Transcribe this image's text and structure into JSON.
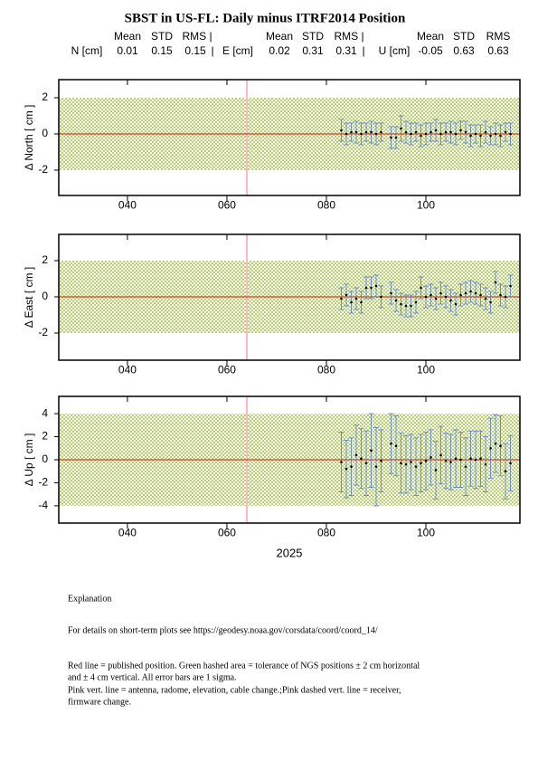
{
  "title": "SBST in US-FL: Daily minus ITRF2014 Position",
  "stats_header": [
    [
      "Mean",
      "STD",
      "RMS |"
    ],
    [
      "Mean",
      "STD",
      "RMS |"
    ],
    [
      "Mean",
      "STD",
      "RMS"
    ]
  ],
  "stats": [
    {
      "label": "N [cm]",
      "mean": 0.01,
      "std": 0.15,
      "rms": 0.15,
      "sep": "|"
    },
    {
      "label": "E [cm]",
      "mean": 0.02,
      "std": 0.31,
      "rms": 0.31,
      "sep": "|"
    },
    {
      "label": "U [cm]",
      "mean": -0.05,
      "std": 0.63,
      "rms": 0.63
    }
  ],
  "chart_data": [
    {
      "type": "errorbar",
      "ylabel": "Δ North  [ cm ]",
      "x": [
        83,
        84,
        85,
        86,
        87,
        88,
        89,
        90,
        91,
        93,
        94,
        95,
        96,
        97,
        98,
        99,
        100,
        101,
        102,
        103,
        104,
        105,
        106,
        107,
        108,
        109,
        110,
        111,
        112,
        113,
        114,
        115,
        116,
        117
      ],
      "values": [
        0.2,
        0.0,
        0.1,
        0.1,
        0.0,
        0.1,
        0.1,
        0.0,
        0.1,
        -0.2,
        -0.2,
        0.3,
        0.1,
        0.0,
        0.1,
        -0.1,
        0.0,
        0.1,
        0.2,
        0.0,
        0.1,
        0.1,
        0.0,
        0.2,
        0.1,
        -0.1,
        0.0,
        -0.1,
        0.1,
        -0.1,
        0.0,
        -0.1,
        0.1,
        0.0
      ],
      "errors": [
        0.6,
        0.6,
        0.5,
        0.6,
        0.6,
        0.5,
        0.6,
        0.6,
        0.5,
        0.6,
        0.6,
        0.7,
        0.6,
        0.6,
        0.5,
        0.6,
        0.6,
        0.5,
        0.6,
        0.6,
        0.5,
        0.6,
        0.6,
        0.5,
        0.6,
        0.6,
        0.5,
        0.6,
        0.6,
        0.5,
        0.6,
        0.6,
        0.5,
        0.6
      ],
      "xlim": [
        26.2,
        118.9
      ],
      "ylim": [
        -3.4,
        3
      ],
      "yticks": [
        -2,
        0,
        2
      ],
      "xticks": [
        {
          "value": 40,
          "label": "040"
        },
        {
          "value": 60,
          "label": "060"
        },
        {
          "value": 80,
          "label": "080"
        },
        {
          "value": 100,
          "label": "100"
        }
      ],
      "band": 2,
      "band_color": "#b5d46a",
      "reference": 0,
      "reference_color": "#e03a20",
      "event_x": 64,
      "event_color": "#ffb6c8",
      "color": "#5577cc",
      "point_color": "#000000"
    },
    {
      "type": "errorbar",
      "ylabel": "Δ East  [ cm ]",
      "x": [
        83,
        84,
        85,
        86,
        87,
        88,
        89,
        90,
        91,
        93,
        94,
        95,
        96,
        97,
        98,
        99,
        100,
        101,
        102,
        103,
        104,
        105,
        106,
        107,
        108,
        109,
        110,
        111,
        112,
        113,
        114,
        115,
        116,
        117
      ],
      "values": [
        -0.1,
        0.1,
        -0.3,
        -0.1,
        -0.3,
        0.5,
        0.5,
        0.6,
        0.0,
        0.2,
        -0.2,
        -0.4,
        -0.5,
        -0.5,
        -0.3,
        0.5,
        0.0,
        0.1,
        -0.1,
        0.2,
        0.0,
        -0.2,
        -0.4,
        0.1,
        0.2,
        0.3,
        0.2,
        0.1,
        -0.1,
        -0.3,
        0.8,
        0.1,
        0.0,
        0.6
      ],
      "errors": [
        0.6,
        0.6,
        0.6,
        0.6,
        0.6,
        0.6,
        0.6,
        0.6,
        0.6,
        0.6,
        0.6,
        0.6,
        0.6,
        0.6,
        0.6,
        0.6,
        0.6,
        0.6,
        0.6,
        0.6,
        0.6,
        0.6,
        0.6,
        0.6,
        0.6,
        0.6,
        0.6,
        0.6,
        0.6,
        0.6,
        0.6,
        0.6,
        0.6,
        0.6
      ],
      "xlim": [
        26.2,
        118.9
      ],
      "ylim": [
        -3.5,
        3.45
      ],
      "yticks": [
        -2,
        0,
        2
      ],
      "xticks": [
        {
          "value": 40,
          "label": "040"
        },
        {
          "value": 60,
          "label": "060"
        },
        {
          "value": 80,
          "label": "080"
        },
        {
          "value": 100,
          "label": "100"
        }
      ],
      "band": 2,
      "band_color": "#b5d46a",
      "reference": 0,
      "reference_color": "#e03a20",
      "event_x": 64,
      "event_color": "#ffb6c8",
      "color": "#5577cc",
      "point_color": "#000000"
    },
    {
      "type": "errorbar",
      "ylabel": "Δ Up  [ cm ]",
      "xlabel": "2025",
      "x": [
        83,
        84,
        85,
        86,
        87,
        88,
        89,
        90,
        91,
        93,
        94,
        95,
        96,
        97,
        98,
        99,
        100,
        101,
        102,
        103,
        104,
        105,
        106,
        107,
        108,
        109,
        110,
        111,
        112,
        113,
        114,
        115,
        116,
        117
      ],
      "values": [
        -0.2,
        -0.8,
        -0.6,
        0.4,
        0.1,
        -0.3,
        0.8,
        -0.6,
        -0.1,
        1.4,
        1.2,
        -0.3,
        -0.4,
        -0.2,
        -0.6,
        -0.3,
        -0.1,
        0.2,
        -0.9,
        0.4,
        -0.1,
        -0.2,
        0.1,
        0.0,
        -0.6,
        0.1,
        0.0,
        0.1,
        -0.4,
        1.0,
        1.4,
        1.2,
        -1.0,
        -0.3
      ],
      "errors": [
        2.6,
        2.5,
        2.5,
        2.6,
        2.6,
        2.8,
        3.2,
        3.4,
        2.7,
        2.6,
        2.6,
        2.6,
        2.5,
        2.4,
        2.5,
        2.5,
        2.5,
        2.4,
        2.5,
        2.5,
        2.4,
        2.4,
        2.5,
        2.4,
        2.5,
        2.4,
        2.5,
        2.4,
        2.4,
        2.6,
        2.5,
        2.6,
        2.4,
        2.4
      ],
      "xlim": [
        26.2,
        118.9
      ],
      "ylim": [
        -5.5,
        5.5
      ],
      "yticks": [
        -4,
        -2,
        0,
        2,
        4
      ],
      "xticks": [
        {
          "value": 40,
          "label": "040"
        },
        {
          "value": 60,
          "label": "060"
        },
        {
          "value": 80,
          "label": "080"
        },
        {
          "value": 100,
          "label": "100"
        }
      ],
      "band": 4,
      "band_color": "#b5d46a",
      "reference": 0,
      "reference_color": "#e03a20",
      "event_x": 64,
      "event_color": "#ffb6c8",
      "color": "#5577cc",
      "point_color": "#000000"
    }
  ],
  "notes": [
    "Explanation",
    "For details on short-term plots see https://geodesy.noaa.gov/corsdata/coord/coord_14/",
    "Red line = published position.  Green hashed area = tolerance of NGS positions ± 2 cm horizontal",
    "and ± 4 cm vertical.  All error bars are 1 sigma.",
    "Pink vert. line = antenna, radome, elevation, cable change.;Pink dashed vert. line = receiver,",
    "firmware change."
  ]
}
